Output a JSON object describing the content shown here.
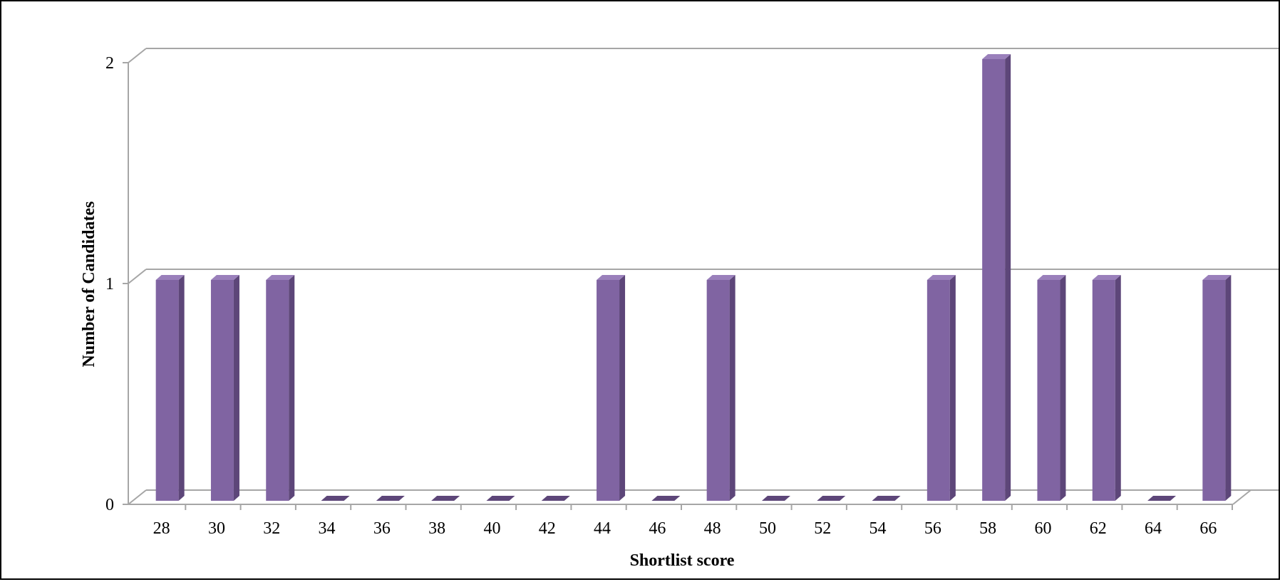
{
  "chart_data": {
    "type": "bar",
    "title": "",
    "xlabel": "Shortlist score",
    "ylabel": "Number of Candidates",
    "categories": [
      "28",
      "30",
      "32",
      "34",
      "36",
      "38",
      "40",
      "42",
      "44",
      "46",
      "48",
      "50",
      "52",
      "54",
      "56",
      "58",
      "60",
      "62",
      "64",
      "66"
    ],
    "values": [
      1,
      1,
      1,
      0,
      0,
      0,
      0,
      0,
      1,
      0,
      1,
      0,
      0,
      0,
      1,
      2,
      1,
      1,
      0,
      1
    ],
    "yticks": [
      "0",
      "1",
      "2"
    ],
    "ylim": [
      0,
      2
    ],
    "grid": true,
    "legend": "none",
    "style": "3d-column",
    "colors": {
      "bar_front": "#8064a2",
      "bar_side": "#5d4679",
      "bar_top": "#9a80bb",
      "grid": "#a6a6a6"
    }
  }
}
